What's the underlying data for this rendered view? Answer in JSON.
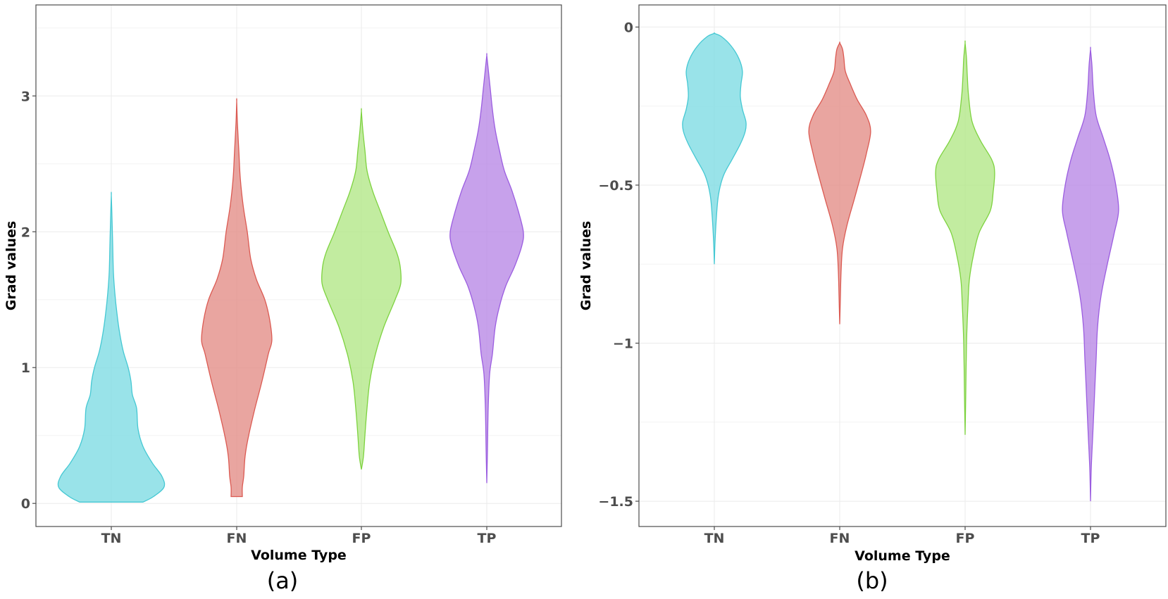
{
  "chart_data": [
    {
      "type": "violin",
      "caption": "(a)",
      "xlabel": "Volume Type",
      "ylabel": "Grad values",
      "categories": [
        "TN",
        "FN",
        "FP",
        "TP"
      ],
      "ylim": [
        -0.17,
        3.67
      ],
      "yticks": [
        0,
        1,
        2,
        3
      ],
      "ytick_labels": [
        "0",
        "1",
        "2",
        "3"
      ],
      "grid": true,
      "series": [
        {
          "name": "TN",
          "color": "#7fdce3",
          "stroke": "#45c8d3",
          "min": 0.01,
          "max": 2.27,
          "profile": [
            [
              0.01,
              0.45
            ],
            [
              0.05,
              0.6
            ],
            [
              0.12,
              0.75
            ],
            [
              0.2,
              0.72
            ],
            [
              0.3,
              0.58
            ],
            [
              0.42,
              0.45
            ],
            [
              0.55,
              0.38
            ],
            [
              0.7,
              0.36
            ],
            [
              0.8,
              0.3
            ],
            [
              0.9,
              0.28
            ],
            [
              1.0,
              0.24
            ],
            [
              1.12,
              0.17
            ],
            [
              1.25,
              0.12
            ],
            [
              1.4,
              0.08
            ],
            [
              1.55,
              0.05
            ],
            [
              1.7,
              0.03
            ],
            [
              1.9,
              0.02
            ],
            [
              2.1,
              0.01
            ],
            [
              2.27,
              0.0
            ]
          ]
        },
        {
          "name": "FN",
          "color": "#e38e88",
          "stroke": "#db5a52",
          "min": 0.05,
          "max": 2.96,
          "profile": [
            [
              0.05,
              0.08
            ],
            [
              0.12,
              0.08
            ],
            [
              0.2,
              0.1
            ],
            [
              0.35,
              0.12
            ],
            [
              0.5,
              0.17
            ],
            [
              0.7,
              0.26
            ],
            [
              0.9,
              0.36
            ],
            [
              1.1,
              0.45
            ],
            [
              1.2,
              0.5
            ],
            [
              1.35,
              0.47
            ],
            [
              1.5,
              0.4
            ],
            [
              1.65,
              0.28
            ],
            [
              1.8,
              0.2
            ],
            [
              2.0,
              0.15
            ],
            [
              2.2,
              0.09
            ],
            [
              2.4,
              0.05
            ],
            [
              2.6,
              0.03
            ],
            [
              2.8,
              0.01
            ],
            [
              2.96,
              0.0
            ]
          ]
        },
        {
          "name": "FP",
          "color": "#b3e788",
          "stroke": "#7dd23f",
          "min": 0.25,
          "max": 2.89,
          "profile": [
            [
              0.25,
              0.0
            ],
            [
              0.35,
              0.03
            ],
            [
              0.5,
              0.05
            ],
            [
              0.7,
              0.08
            ],
            [
              0.9,
              0.12
            ],
            [
              1.1,
              0.2
            ],
            [
              1.3,
              0.32
            ],
            [
              1.5,
              0.48
            ],
            [
              1.62,
              0.56
            ],
            [
              1.75,
              0.55
            ],
            [
              1.85,
              0.5
            ],
            [
              2.0,
              0.38
            ],
            [
              2.15,
              0.27
            ],
            [
              2.3,
              0.16
            ],
            [
              2.45,
              0.08
            ],
            [
              2.6,
              0.05
            ],
            [
              2.75,
              0.02
            ],
            [
              2.89,
              0.0
            ]
          ]
        },
        {
          "name": "TP",
          "color": "#b98ae6",
          "stroke": "#9b5de0",
          "min": 0.15,
          "max": 3.3,
          "profile": [
            [
              0.15,
              0.0
            ],
            [
              0.4,
              0.01
            ],
            [
              0.7,
              0.02
            ],
            [
              0.95,
              0.04
            ],
            [
              1.1,
              0.08
            ],
            [
              1.3,
              0.12
            ],
            [
              1.45,
              0.18
            ],
            [
              1.6,
              0.27
            ],
            [
              1.75,
              0.4
            ],
            [
              1.9,
              0.5
            ],
            [
              2.0,
              0.52
            ],
            [
              2.15,
              0.45
            ],
            [
              2.3,
              0.36
            ],
            [
              2.45,
              0.25
            ],
            [
              2.6,
              0.18
            ],
            [
              2.75,
              0.12
            ],
            [
              2.9,
              0.08
            ],
            [
              3.05,
              0.05
            ],
            [
              3.2,
              0.02
            ],
            [
              3.3,
              0.0
            ]
          ]
        }
      ]
    },
    {
      "type": "violin",
      "caption": "(b)",
      "xlabel": "Volume Type",
      "ylabel": "Grad values",
      "categories": [
        "TN",
        "FN",
        "FP",
        "TP"
      ],
      "ylim": [
        -1.58,
        0.07
      ],
      "yticks": [
        0,
        -0.5,
        -1,
        -1.5
      ],
      "ytick_labels": [
        "0",
        "−0.5",
        "−1",
        "−1.5"
      ],
      "grid": true,
      "series": [
        {
          "name": "TN",
          "color": "#7fdce3",
          "stroke": "#45c8d3",
          "min": -0.75,
          "max": -0.02,
          "profile": [
            [
              -0.75,
              0.0
            ],
            [
              -0.68,
              0.01
            ],
            [
              -0.6,
              0.03
            ],
            [
              -0.53,
              0.06
            ],
            [
              -0.47,
              0.13
            ],
            [
              -0.42,
              0.25
            ],
            [
              -0.37,
              0.37
            ],
            [
              -0.33,
              0.44
            ],
            [
              -0.3,
              0.45
            ],
            [
              -0.26,
              0.4
            ],
            [
              -0.22,
              0.37
            ],
            [
              -0.18,
              0.38
            ],
            [
              -0.14,
              0.4
            ],
            [
              -0.1,
              0.35
            ],
            [
              -0.06,
              0.24
            ],
            [
              -0.03,
              0.1
            ],
            [
              -0.02,
              0.0
            ]
          ]
        },
        {
          "name": "FN",
          "color": "#e38e88",
          "stroke": "#db5a52",
          "min": -0.94,
          "max": -0.05,
          "profile": [
            [
              -0.94,
              0.0
            ],
            [
              -0.85,
              0.01
            ],
            [
              -0.77,
              0.02
            ],
            [
              -0.7,
              0.04
            ],
            [
              -0.63,
              0.1
            ],
            [
              -0.55,
              0.2
            ],
            [
              -0.47,
              0.3
            ],
            [
              -0.4,
              0.38
            ],
            [
              -0.33,
              0.44
            ],
            [
              -0.28,
              0.38
            ],
            [
              -0.23,
              0.25
            ],
            [
              -0.18,
              0.15
            ],
            [
              -0.14,
              0.08
            ],
            [
              -0.1,
              0.06
            ],
            [
              -0.07,
              0.04
            ],
            [
              -0.05,
              0.0
            ]
          ]
        },
        {
          "name": "FP",
          "color": "#b3e788",
          "stroke": "#7dd23f",
          "min": -1.29,
          "max": -0.05,
          "profile": [
            [
              -1.29,
              0.0
            ],
            [
              -1.15,
              0.01
            ],
            [
              -1.0,
              0.02
            ],
            [
              -0.88,
              0.04
            ],
            [
              -0.8,
              0.06
            ],
            [
              -0.72,
              0.12
            ],
            [
              -0.65,
              0.2
            ],
            [
              -0.58,
              0.36
            ],
            [
              -0.52,
              0.4
            ],
            [
              -0.46,
              0.42
            ],
            [
              -0.42,
              0.38
            ],
            [
              -0.36,
              0.22
            ],
            [
              -0.3,
              0.1
            ],
            [
              -0.22,
              0.05
            ],
            [
              -0.15,
              0.03
            ],
            [
              -0.1,
              0.02
            ],
            [
              -0.05,
              0.0
            ]
          ]
        },
        {
          "name": "TP",
          "color": "#b98ae6",
          "stroke": "#9b5de0",
          "min": -1.5,
          "max": -0.07,
          "profile": [
            [
              -1.5,
              0.0
            ],
            [
              -1.4,
              0.01
            ],
            [
              -1.3,
              0.03
            ],
            [
              -1.2,
              0.05
            ],
            [
              -1.05,
              0.08
            ],
            [
              -0.95,
              0.1
            ],
            [
              -0.85,
              0.15
            ],
            [
              -0.75,
              0.24
            ],
            [
              -0.65,
              0.34
            ],
            [
              -0.58,
              0.4
            ],
            [
              -0.5,
              0.36
            ],
            [
              -0.42,
              0.28
            ],
            [
              -0.35,
              0.18
            ],
            [
              -0.28,
              0.08
            ],
            [
              -0.2,
              0.04
            ],
            [
              -0.12,
              0.02
            ],
            [
              -0.07,
              0.0
            ]
          ]
        }
      ]
    }
  ]
}
